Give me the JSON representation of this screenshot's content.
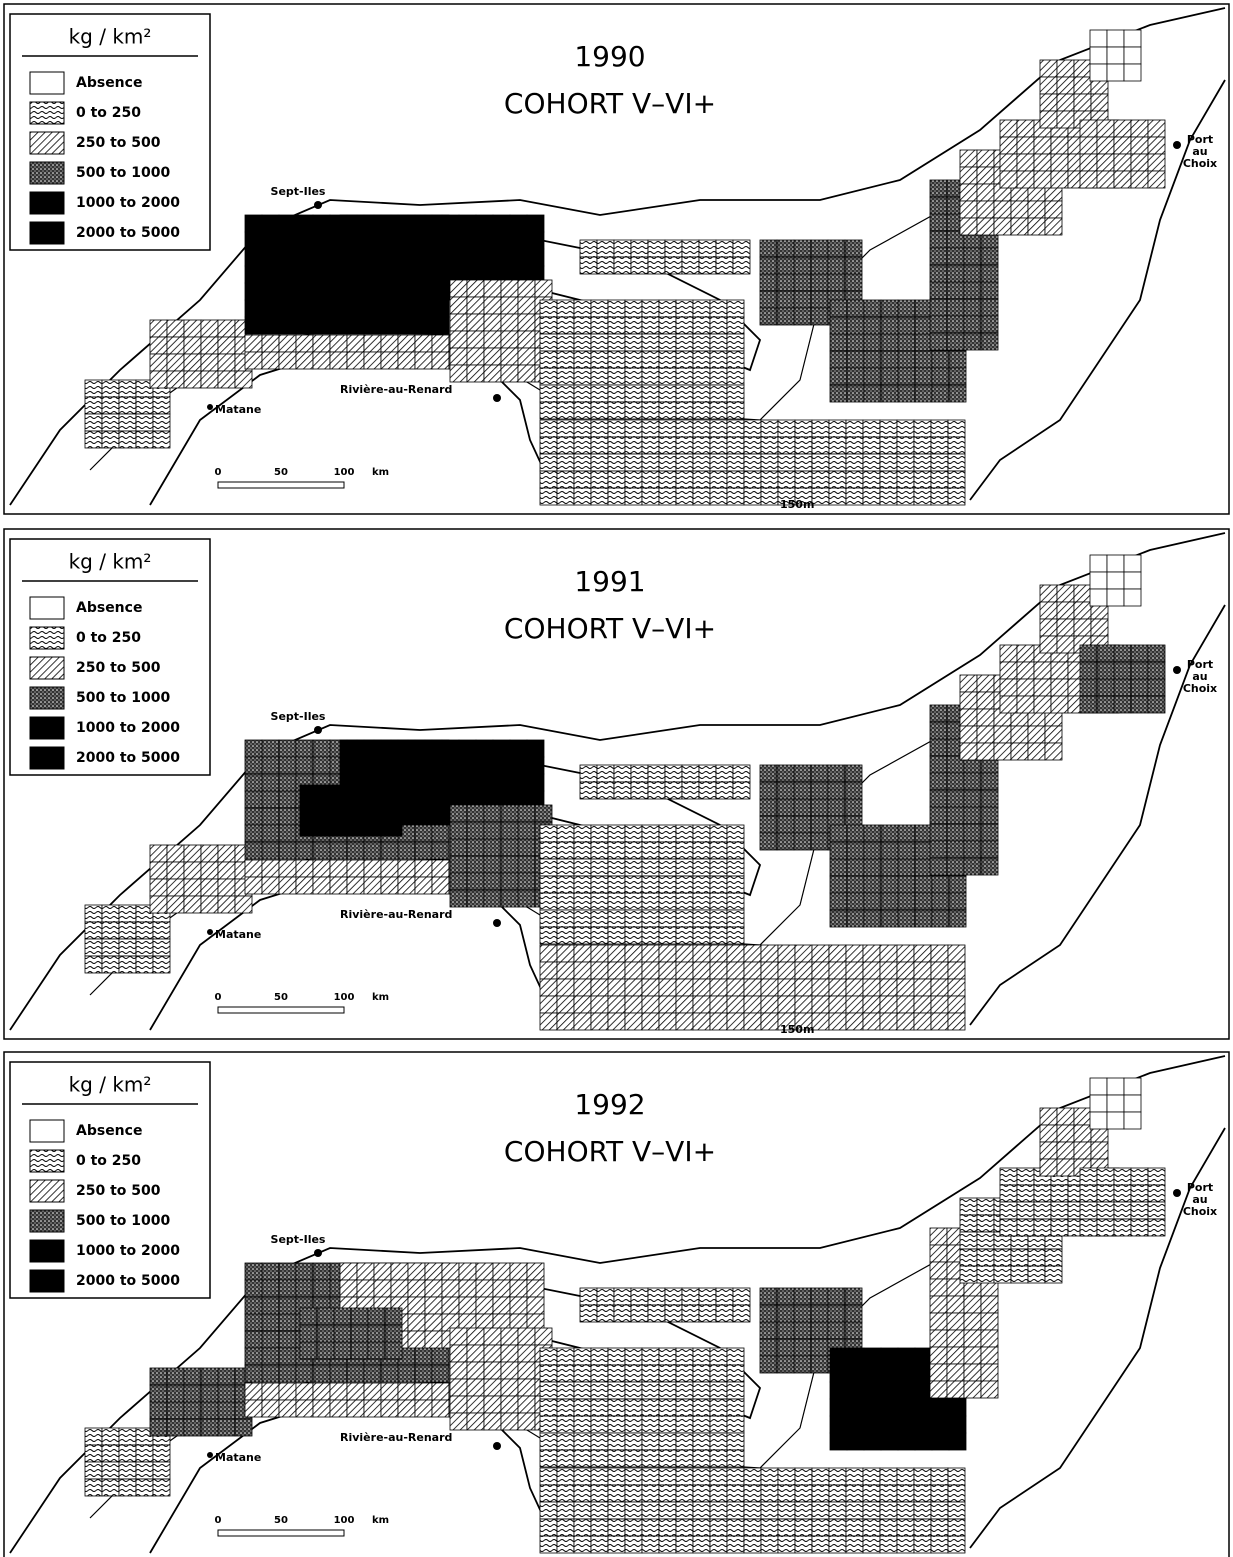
{
  "panels": [
    {
      "year": "1990",
      "subtitle": "COHORT V–VI+",
      "legend": {
        "title": "kg / km²",
        "items": [
          "Absence",
          "0 to 250",
          "250 to 500",
          "500 to 1000",
          "1000 to 2000",
          "2000 to 5000"
        ]
      },
      "places": {
        "sept_iles": "Sept-Iles",
        "matane": "Matane",
        "riviere": "Rivière-au-Renard",
        "port": [
          "Port",
          "au",
          "Choix"
        ],
        "isobath": "150m"
      },
      "scale": {
        "ticks": [
          "0",
          "50",
          "100"
        ],
        "unit": "km"
      }
    },
    {
      "year": "1991",
      "subtitle": "COHORT V–VI+",
      "legend": {
        "title": "kg / km²",
        "items": [
          "Absence",
          "0 to 250",
          "250 to 500",
          "500 to 1000",
          "1000 to 2000",
          "2000 to 5000"
        ]
      },
      "places": {
        "sept_iles": "Sept-Iles",
        "matane": "Matane",
        "riviere": "Rivière-au-Renard",
        "port": [
          "Port",
          "au",
          "Choix"
        ],
        "isobath": "150m"
      },
      "scale": {
        "ticks": [
          "0",
          "50",
          "100"
        ],
        "unit": "km"
      }
    },
    {
      "year": "1992",
      "subtitle": "COHORT V–VI+",
      "legend": {
        "title": "kg / km²",
        "items": [
          "Absence",
          "0 to 250",
          "250 to 500",
          "500 to 1000",
          "1000 to 2000",
          "2000 to 5000"
        ]
      },
      "places": {
        "sept_iles": "Sept-Iles",
        "matane": "Matane",
        "riviere": "Rivière-au-Renard",
        "port": [
          "Port",
          "au",
          "Choix"
        ]
      },
      "scale": {
        "ticks": [
          "0",
          "50",
          "100"
        ],
        "unit": "km"
      }
    }
  ]
}
